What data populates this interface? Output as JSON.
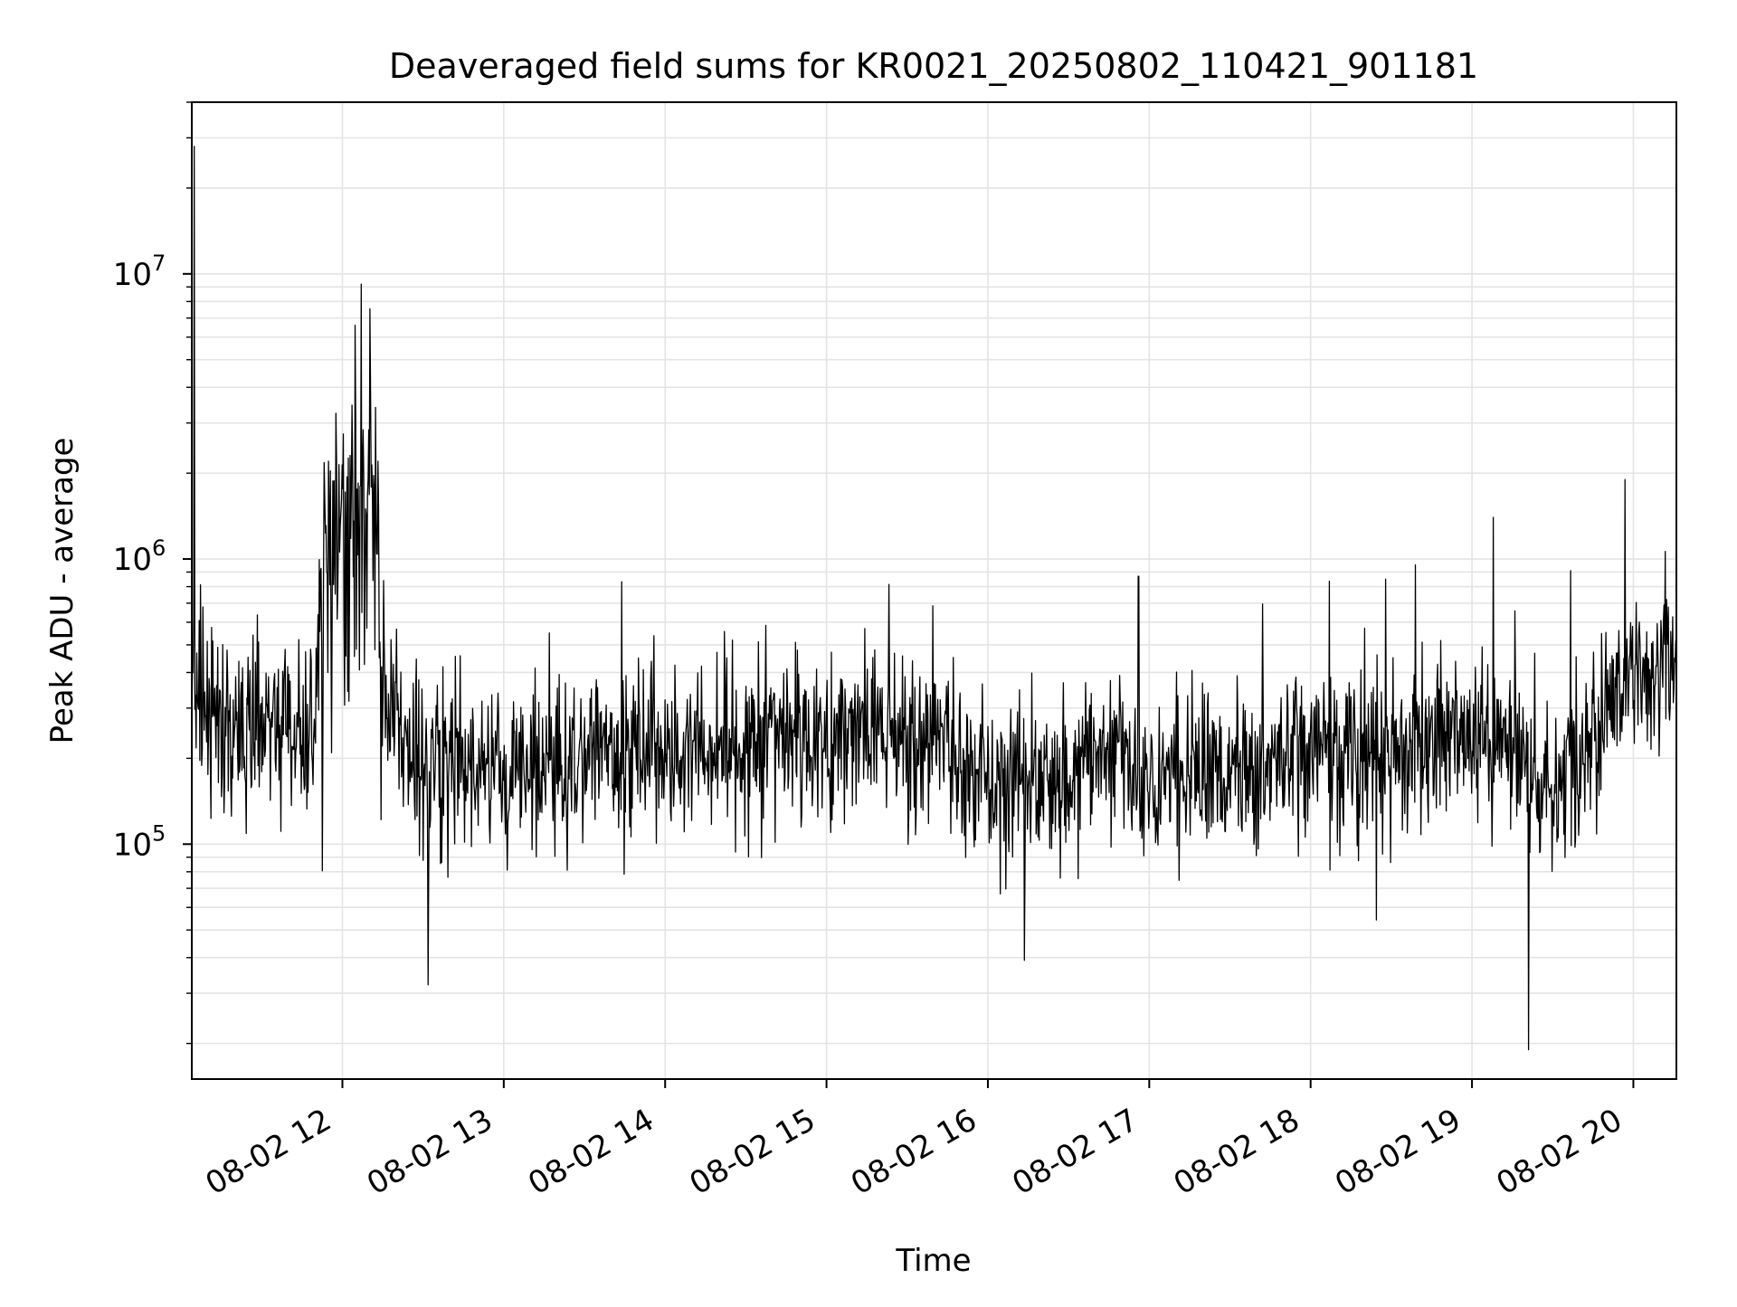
{
  "chart_data": {
    "type": "line",
    "title": "Deaveraged field sums for KR0021_20250802_110421_901181",
    "xlabel": "Time",
    "ylabel": "Peak ADU - average",
    "yscale": "log",
    "xlim": [
      "08-02 11:04",
      "08-02 20:16"
    ],
    "ylim": [
      15000,
      40000000
    ],
    "grid": true,
    "x_ticks": [
      "08-02 12",
      "08-02 13",
      "08-02 14",
      "08-02 15",
      "08-02 16",
      "08-02 17",
      "08-02 18",
      "08-02 19",
      "08-02 20"
    ],
    "y_ticks": [
      {
        "base": "10",
        "exp": "5",
        "value": 100000
      },
      {
        "base": "10",
        "exp": "6",
        "value": 1000000
      },
      {
        "base": "10",
        "exp": "7",
        "value": 10000000
      }
    ],
    "series": [
      {
        "color": "#000000",
        "x": [
          "08-02 11:04",
          "08-02 11:20",
          "08-02 11:35",
          "08-02 11:50",
          "08-02 11:55",
          "08-02 12:00",
          "08-02 12:05",
          "08-02 12:10",
          "08-02 12:15",
          "08-02 12:30",
          "08-02 13:00",
          "08-02 13:30",
          "08-02 14:00",
          "08-02 14:30",
          "08-02 15:00",
          "08-02 15:30",
          "08-02 16:00",
          "08-02 16:30",
          "08-02 16:50",
          "08-02 17:00",
          "08-02 17:30",
          "08-02 18:00",
          "08-02 18:30",
          "08-02 18:50",
          "08-02 19:00",
          "08-02 19:15",
          "08-02 19:30",
          "08-02 19:45",
          "08-02 20:00",
          "08-02 20:16"
        ],
        "values": [
          300000,
          250000,
          280000,
          230000,
          900000,
          1500000,
          1300000,
          1800000,
          350000,
          180000,
          180000,
          200000,
          210000,
          230000,
          250000,
          240000,
          170000,
          190000,
          210000,
          170000,
          180000,
          210000,
          200000,
          230000,
          280000,
          200000,
          160000,
          230000,
          380000,
          450000
        ],
        "spikes": [
          {
            "x": "08-02 11:05",
            "value": 28000000
          },
          {
            "x": "08-02 12:07",
            "value": 9200000
          },
          {
            "x": "08-02 16:56",
            "value": 870000
          },
          {
            "x": "08-02 19:08",
            "value": 1400000
          },
          {
            "x": "08-02 19:57",
            "value": 1900000
          },
          {
            "x": "08-02 19:21",
            "value": 19000
          }
        ]
      }
    ]
  }
}
